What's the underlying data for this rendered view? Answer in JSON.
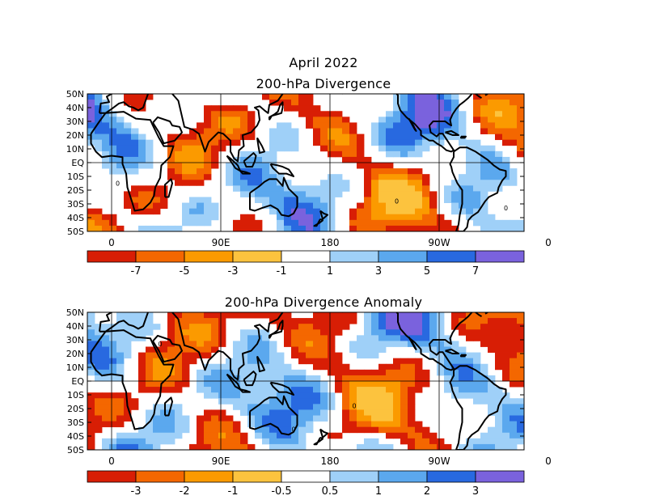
{
  "header": {
    "title": "April 2022"
  },
  "colors": {
    "neg": [
      "#d81e05",
      "#f46700",
      "#fb9a00",
      "#fcc33e"
    ],
    "zero": "#ffffff",
    "pos": [
      "#9fd0f8",
      "#5ba8ee",
      "#2869e0",
      "#7a62dd"
    ],
    "frame": "#000000",
    "land_outline": "#000000"
  },
  "maps": [
    {
      "title": "200-hPa Divergence",
      "lat_labels": [
        "50N",
        "40N",
        "30N",
        "20N",
        "10N",
        "EQ",
        "10S",
        "20S",
        "30S",
        "40S",
        "50S"
      ],
      "lon_labels": [
        "0",
        "90E",
        "180",
        "90W",
        "0"
      ],
      "contour_label": "0",
      "colorbar_labels": [
        "-7",
        "-5",
        "-3",
        "-1",
        "1",
        "3",
        "5",
        "7"
      ]
    },
    {
      "title": "200-hPa Divergence Anomaly",
      "lat_labels": [
        "50N",
        "40N",
        "30N",
        "20N",
        "10N",
        "EQ",
        "10S",
        "20S",
        "30S",
        "40S",
        "50S"
      ],
      "lon_labels": [
        "0",
        "90E",
        "180",
        "90W",
        "0"
      ],
      "contour_label": "0",
      "colorbar_labels": [
        "-3",
        "-2",
        "-1",
        "-0.5",
        "0.5",
        "1",
        "2",
        "3"
      ]
    }
  ]
}
